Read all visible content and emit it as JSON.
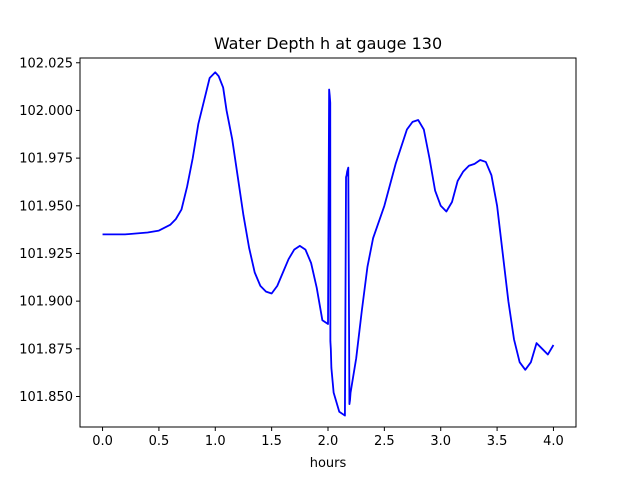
{
  "chart_data": {
    "type": "line",
    "title": "Water Depth h at gauge 130",
    "xlabel": "hours",
    "ylabel": "",
    "xlim": [
      -0.2,
      4.2
    ],
    "ylim": [
      101.834,
      102.0275
    ],
    "xticks": [
      0.0,
      0.5,
      1.0,
      1.5,
      2.0,
      2.5,
      3.0,
      3.5,
      4.0
    ],
    "xtick_labels": [
      "0.0",
      "0.5",
      "1.0",
      "1.5",
      "2.0",
      "2.5",
      "3.0",
      "3.5",
      "4.0"
    ],
    "yticks": [
      101.85,
      101.875,
      101.9,
      101.925,
      101.95,
      101.975,
      102.0,
      102.025
    ],
    "ytick_labels": [
      "101.850",
      "101.875",
      "101.900",
      "101.925",
      "101.950",
      "101.975",
      "102.000",
      "102.025"
    ],
    "grid": false,
    "series": [
      {
        "color": "#0000ff",
        "x": [
          0.0,
          0.2,
          0.4,
          0.5,
          0.6,
          0.65,
          0.7,
          0.75,
          0.8,
          0.85,
          0.9,
          0.95,
          1.0,
          1.03,
          1.07,
          1.1,
          1.15,
          1.2,
          1.25,
          1.3,
          1.35,
          1.4,
          1.45,
          1.5,
          1.55,
          1.6,
          1.65,
          1.7,
          1.75,
          1.8,
          1.85,
          1.9,
          1.95,
          2.0,
          2.01,
          2.015,
          2.02,
          2.021,
          2.025,
          2.03,
          2.05,
          2.1,
          2.15,
          2.16,
          2.165,
          2.17,
          2.18,
          2.19,
          2.195,
          2.2,
          2.25,
          2.3,
          2.35,
          2.4,
          2.5,
          2.6,
          2.7,
          2.75,
          2.8,
          2.85,
          2.9,
          2.95,
          3.0,
          3.05,
          3.1,
          3.15,
          3.2,
          3.25,
          3.3,
          3.35,
          3.4,
          3.45,
          3.5,
          3.55,
          3.6,
          3.65,
          3.7,
          3.75,
          3.8,
          3.85,
          3.9,
          3.95,
          4.0
        ],
        "y": [
          101.935,
          101.935,
          101.936,
          101.937,
          101.94,
          101.943,
          101.948,
          101.96,
          101.975,
          101.993,
          102.005,
          102.017,
          102.02,
          102.018,
          102.012,
          102.0,
          101.985,
          101.965,
          101.945,
          101.928,
          101.915,
          101.908,
          101.905,
          101.904,
          101.908,
          101.915,
          101.922,
          101.927,
          101.929,
          101.927,
          101.92,
          101.907,
          101.89,
          101.888,
          102.011,
          102.008,
          102.004,
          101.879,
          101.875,
          101.865,
          101.852,
          101.842,
          101.84,
          101.965,
          101.966,
          101.968,
          101.97,
          101.846,
          101.848,
          101.852,
          101.87,
          101.895,
          101.918,
          101.933,
          101.95,
          101.972,
          101.99,
          101.994,
          101.995,
          101.99,
          101.975,
          101.958,
          101.95,
          101.947,
          101.952,
          101.963,
          101.968,
          101.971,
          101.972,
          101.974,
          101.973,
          101.966,
          101.95,
          101.925,
          101.9,
          101.88,
          101.868,
          101.864,
          101.868,
          101.878,
          101.875,
          101.872,
          101.877
        ]
      }
    ]
  }
}
